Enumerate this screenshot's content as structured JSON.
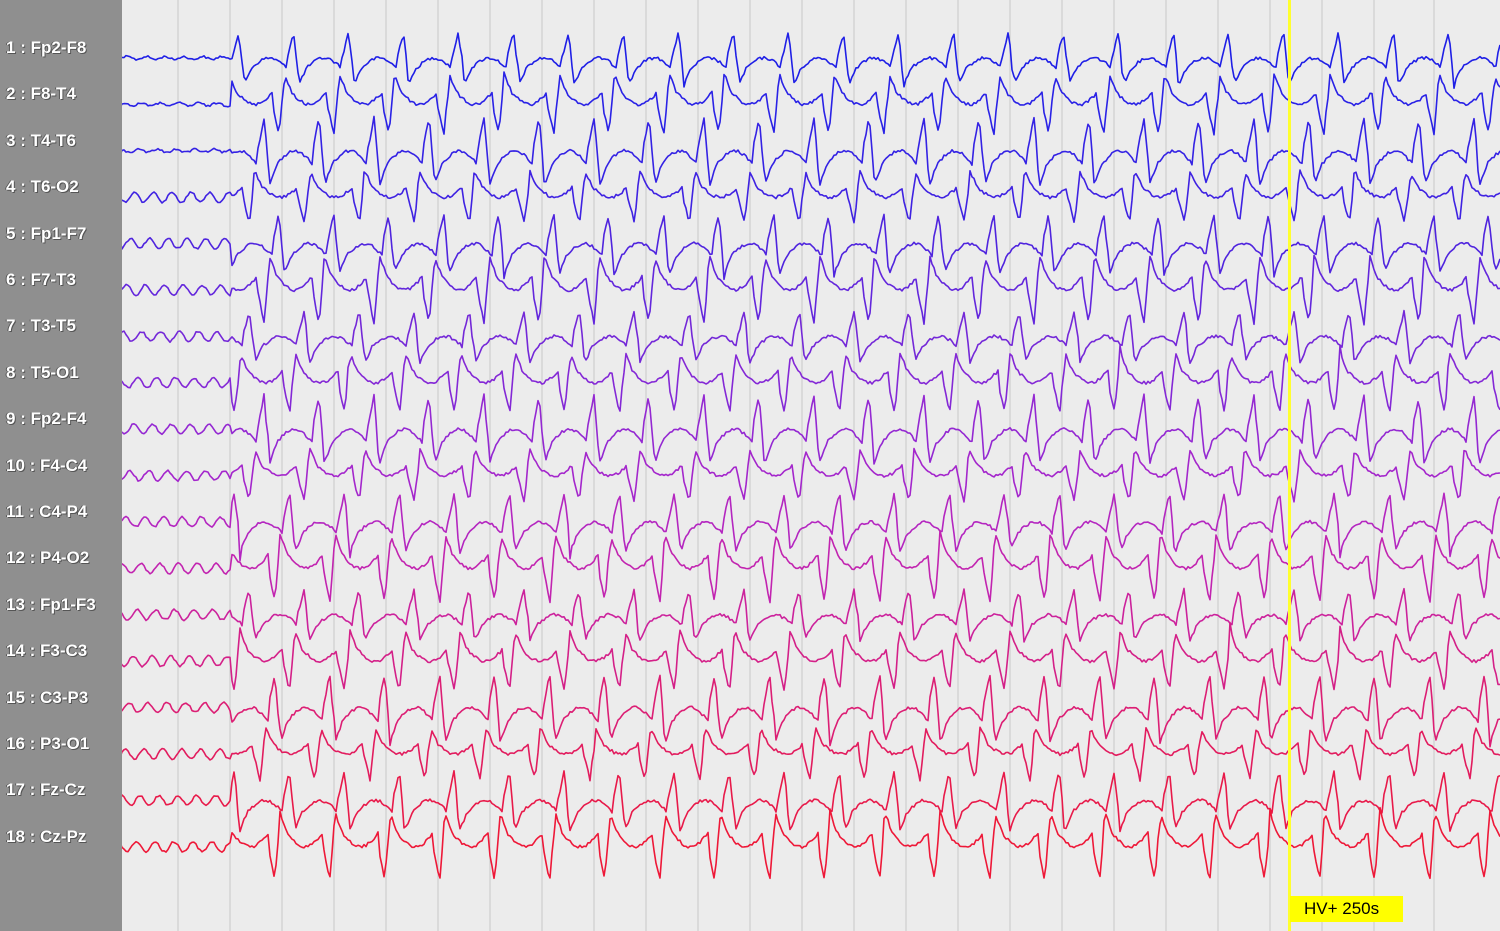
{
  "viewer": {
    "montage": "bipolar",
    "channels": [
      {
        "index": 1,
        "label": "1 : Fp2-F8",
        "color": "#1f1fe6"
      },
      {
        "index": 2,
        "label": "2 : F8-T4",
        "color": "#2a22e6"
      },
      {
        "index": 3,
        "label": "3 : T4-T6",
        "color": "#3422e4"
      },
      {
        "index": 4,
        "label": "4 : T6-O2",
        "color": "#3f22e2"
      },
      {
        "index": 5,
        "label": "5 : Fp1-F7",
        "color": "#4f24de"
      },
      {
        "index": 6,
        "label": "6 : F7-T3",
        "color": "#6326dc"
      },
      {
        "index": 7,
        "label": "7 : T3-T5",
        "color": "#7428d8"
      },
      {
        "index": 8,
        "label": "8 : T5-O1",
        "color": "#8428d6"
      },
      {
        "index": 9,
        "label": "9 : Fp2-F4",
        "color": "#9428d2"
      },
      {
        "index": 10,
        "label": "10 : F4-C4",
        "color": "#a426cc"
      },
      {
        "index": 11,
        "label": "11 : C4-P4",
        "color": "#b426c0"
      },
      {
        "index": 12,
        "label": "12 : P4-O2",
        "color": "#c224b0"
      },
      {
        "index": 13,
        "label": "13 : Fp1-F3",
        "color": "#cc229c"
      },
      {
        "index": 14,
        "label": "14 : F3-C3",
        "color": "#d42088"
      },
      {
        "index": 15,
        "label": "15 : C3-P3",
        "color": "#dc1e74"
      },
      {
        "index": 16,
        "label": "16 : P3-O1",
        "color": "#e21c5e"
      },
      {
        "index": 17,
        "label": "17 : Fz-Cz",
        "color": "#e81a4a"
      },
      {
        "index": 18,
        "label": "18 : Cz-Pz",
        "color": "#ee1838"
      }
    ],
    "event": {
      "label": "HV+ 250s",
      "color": "#ffff00"
    },
    "colors": {
      "background": "#ececec",
      "label_panel": "#8f8f8f",
      "grid": "#c8c8c8"
    }
  }
}
